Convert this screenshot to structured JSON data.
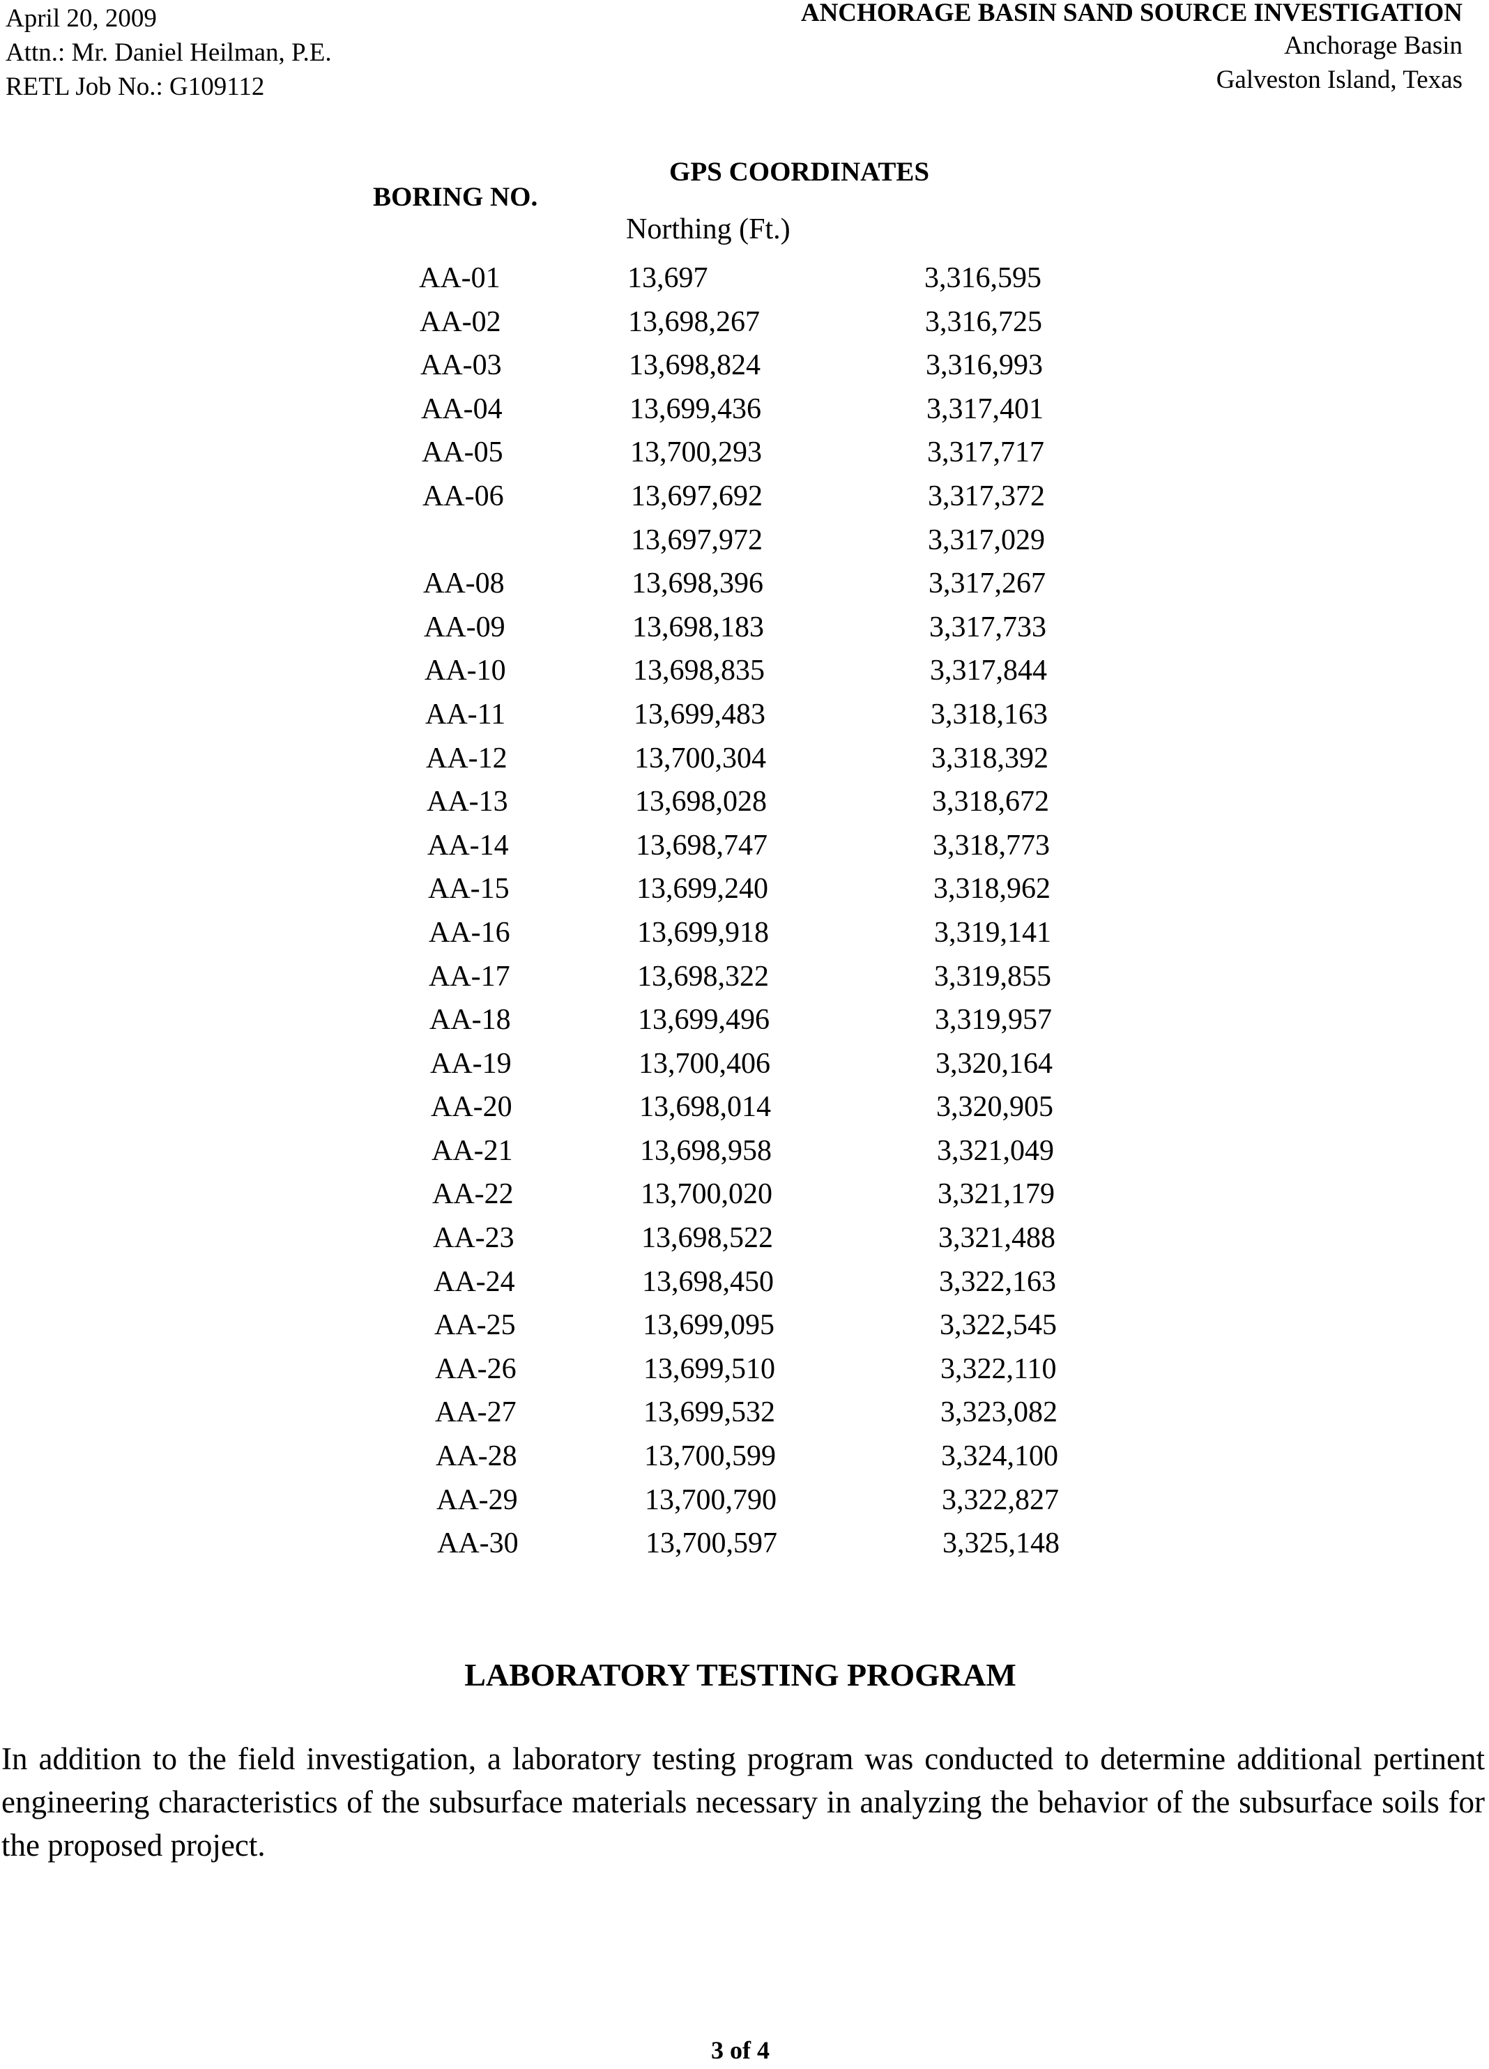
{
  "header": {
    "date": "April 20, 2009",
    "attn": "Attn.: Mr. Daniel Heilman, P.E.",
    "job_no": "RETL Job No.: G109112",
    "title": "ANCHORAGE BASIN SAND SOURCE INVESTIGATION",
    "location": "Anchorage Basin",
    "city": "Galveston Island, Texas"
  },
  "table": {
    "boring_header": "BORING NO.",
    "gps_header": "GPS COORDINATES",
    "northing_header": "Northing (Ft.)",
    "rows": [
      {
        "boring": "AA-01",
        "northing": "13,697",
        "easting": "3,316,595"
      },
      {
        "boring": "AA-02",
        "northing": "13,698,267",
        "easting": "3,316,725"
      },
      {
        "boring": "AA-03",
        "northing": "13,698,824",
        "easting": "3,316,993"
      },
      {
        "boring": "AA-04",
        "northing": "13,699,436",
        "easting": "3,317,401"
      },
      {
        "boring": "AA-05",
        "northing": "13,700,293",
        "easting": "3,317,717"
      },
      {
        "boring": "AA-06",
        "northing": "13,697,692",
        "easting": "3,317,372"
      },
      {
        "boring": "",
        "northing": "13,697,972",
        "easting": "3,317,029"
      },
      {
        "boring": "AA-08",
        "northing": "13,698,396",
        "easting": "3,317,267"
      },
      {
        "boring": "AA-09",
        "northing": "13,698,183",
        "easting": "3,317,733"
      },
      {
        "boring": "AA-10",
        "northing": "13,698,835",
        "easting": "3,317,844"
      },
      {
        "boring": "AA-11",
        "northing": "13,699,483",
        "easting": "3,318,163"
      },
      {
        "boring": "AA-12",
        "northing": "13,700,304",
        "easting": "3,318,392"
      },
      {
        "boring": "AA-13",
        "northing": "13,698,028",
        "easting": "3,318,672"
      },
      {
        "boring": "AA-14",
        "northing": "13,698,747",
        "easting": "3,318,773"
      },
      {
        "boring": "AA-15",
        "northing": "13,699,240",
        "easting": "3,318,962"
      },
      {
        "boring": "AA-16",
        "northing": "13,699,918",
        "easting": "3,319,141"
      },
      {
        "boring": "AA-17",
        "northing": "13,698,322",
        "easting": "3,319,855"
      },
      {
        "boring": "AA-18",
        "northing": "13,699,496",
        "easting": "3,319,957"
      },
      {
        "boring": "AA-19",
        "northing": "13,700,406",
        "easting": "3,320,164"
      },
      {
        "boring": "AA-20",
        "northing": "13,698,014",
        "easting": "3,320,905"
      },
      {
        "boring": "AA-21",
        "northing": "13,698,958",
        "easting": "3,321,049"
      },
      {
        "boring": "AA-22",
        "northing": "13,700,020",
        "easting": "3,321,179"
      },
      {
        "boring": "AA-23",
        "northing": "13,698,522",
        "easting": "3,321,488"
      },
      {
        "boring": "AA-24",
        "northing": "13,698,450",
        "easting": "3,322,163"
      },
      {
        "boring": "AA-25",
        "northing": "13,699,095",
        "easting": "3,322,545"
      },
      {
        "boring": "AA-26",
        "northing": "13,699,510",
        "easting": "3,322,110"
      },
      {
        "boring": "AA-27",
        "northing": "13,699,532",
        "easting": "3,323,082"
      },
      {
        "boring": "AA-28",
        "northing": "13,700,599",
        "easting": "3,324,100"
      },
      {
        "boring": "AA-29",
        "northing": "13,700,790",
        "easting": "3,322,827"
      },
      {
        "boring": "AA-30",
        "northing": "13,700,597",
        "easting": "3,325,148"
      }
    ]
  },
  "section": {
    "heading": "LABORATORY TESTING PROGRAM",
    "paragraph": "In addition to the field investigation, a laboratory testing program was conducted to determine additional pertinent engineering characteristics of the subsurface materials necessary in analyzing the behavior of the subsurface soils for the proposed project."
  },
  "footer": {
    "page": "3 of 4"
  }
}
